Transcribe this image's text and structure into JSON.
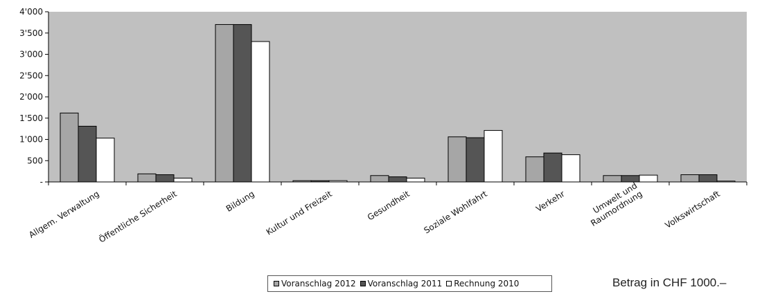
{
  "chart_data": {
    "type": "bar",
    "categories": [
      "Allgem. Verwaltung",
      "Öffentliche Sicherheit",
      "Bildung",
      "Kultur und Freizeit",
      "Gesundheit",
      "Soziale Wohlfahrt",
      "Verkehr",
      "Umwelt und Raumordnung",
      "Volkswirtschaft"
    ],
    "category_lines": [
      [
        "Allgem. Verwaltung"
      ],
      [
        "Öffentliche Sicherheit"
      ],
      [
        "Bildung"
      ],
      [
        "Kultur und Freizeit"
      ],
      [
        "Gesundheit"
      ],
      [
        "Soziale Wohlfahrt"
      ],
      [
        "Verkehr"
      ],
      [
        "Umwelt und",
        "Raumordnung"
      ],
      [
        "Volkswirtschaft"
      ]
    ],
    "series": [
      {
        "name": "Voranschlag 2012",
        "color": "#a6a6a6",
        "values": [
          1620,
          190,
          3700,
          30,
          150,
          1060,
          590,
          150,
          170
        ]
      },
      {
        "name": "Voranschlag 2011",
        "color": "#555555",
        "values": [
          1310,
          170,
          3700,
          30,
          120,
          1040,
          680,
          150,
          170
        ]
      },
      {
        "name": "Rechnung 2010",
        "color": "#ffffff",
        "values": [
          1030,
          90,
          3300,
          30,
          90,
          1210,
          640,
          160,
          20
        ]
      }
    ],
    "ylim": [
      0,
      4000
    ],
    "yticks": [
      0,
      500,
      1000,
      1500,
      2000,
      2500,
      3000,
      3500,
      4000
    ],
    "ytick_labels": [
      "-",
      "500",
      "1'000",
      "1'500",
      "2'000",
      "2'500",
      "3'000",
      "3'500",
      "4'000"
    ],
    "legend_position": "bottom-center",
    "plot_background": "#c0c0c0",
    "gridlines": false
  },
  "unit_note": "Betrag in CHF 1000.–"
}
